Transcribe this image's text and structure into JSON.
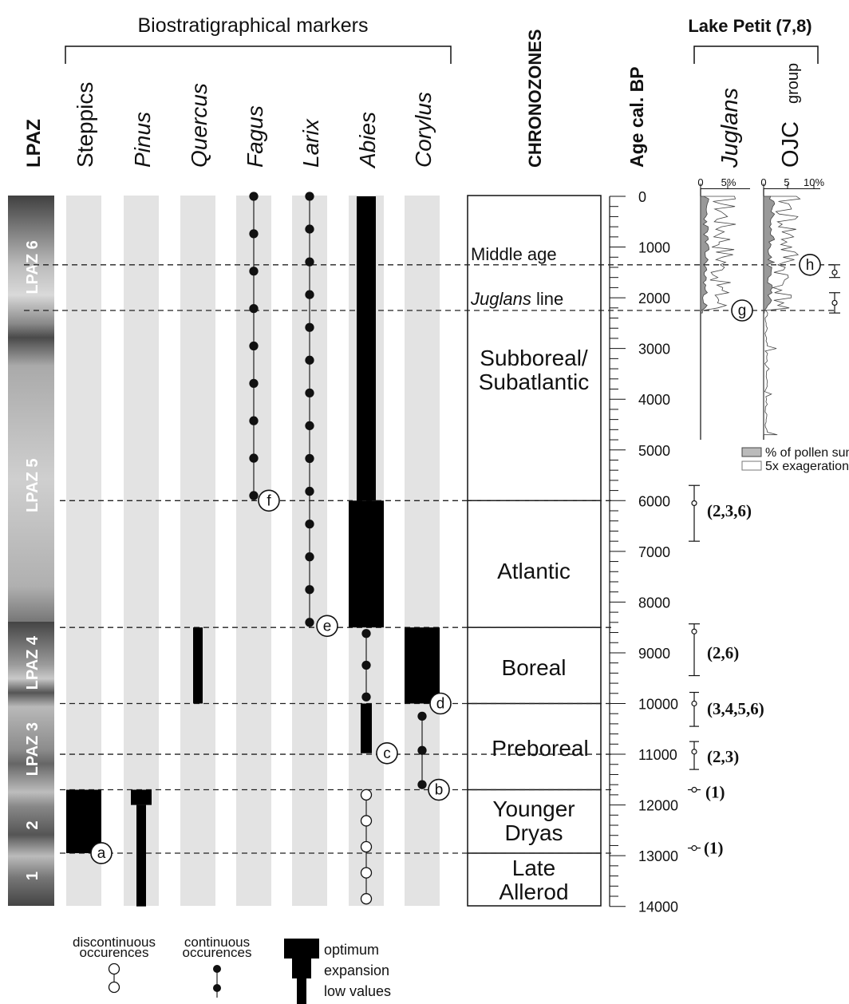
{
  "header": {
    "biostrat_title": "Biostratigraphical markers",
    "lake_title": "Lake Petit (7,8)"
  },
  "columns": {
    "lpaz": "LPAZ",
    "chronozones": "CHRONOZONES",
    "age": "Age cal. BP"
  },
  "taxa": [
    {
      "name": "Steppics",
      "italic": false
    },
    {
      "name": "Pinus",
      "italic": true
    },
    {
      "name": "Quercus",
      "italic": true
    },
    {
      "name": "Fagus",
      "italic": true
    },
    {
      "name": "Larix",
      "italic": true
    },
    {
      "name": "Abies",
      "italic": true
    },
    {
      "name": "Corylus",
      "italic": true
    }
  ],
  "lake_columns": {
    "juglans": "Juglans",
    "ojc": "OJC",
    "ojc_sub": "group",
    "juglans_ticks": [
      "0",
      "5%"
    ],
    "ojc_ticks": [
      "0",
      "5",
      "10%"
    ]
  },
  "lpaz_labels": [
    "LPAZ 6",
    "LPAZ 5",
    "LPAZ 4",
    "LPAZ 3",
    "2",
    "1"
  ],
  "chronozones": [
    {
      "line1": "Middle age",
      "line2": ""
    },
    {
      "line1": "Juglans",
      "line2": " line"
    },
    {
      "line1": "Subboreal/",
      "line2": "Subatlantic"
    },
    {
      "line1": "Atlantic",
      "line2": ""
    },
    {
      "line1": "Boreal",
      "line2": ""
    },
    {
      "line1": "Preboreal",
      "line2": ""
    },
    {
      "line1": "Younger",
      "line2": "Dryas"
    },
    {
      "line1": "Late",
      "line2": "Allerod"
    }
  ],
  "age_axis": {
    "labels": [
      "0",
      "1000",
      "2000",
      "3000",
      "4000",
      "5000",
      "6000",
      "7000",
      "8000",
      "9000",
      "10000",
      "11000",
      "12000",
      "13000",
      "14000"
    ]
  },
  "markers": [
    "a",
    "b",
    "c",
    "d",
    "e",
    "f",
    "g",
    "h"
  ],
  "references": [
    "(2,3,6)",
    "(2,6)",
    "(3,4,5,6)",
    "(2,3)",
    "(1)",
    "(1)"
  ],
  "legend": {
    "discontinuous": "discontinuous",
    "discontinuous2": "occurences",
    "continuous": "continuous",
    "continuous2": "occurences",
    "optimum": "optimum",
    "expansion": "expansion",
    "low_values": "low values",
    "pct_pollen": "% of pollen sum",
    "exag": "5x exageration"
  }
}
